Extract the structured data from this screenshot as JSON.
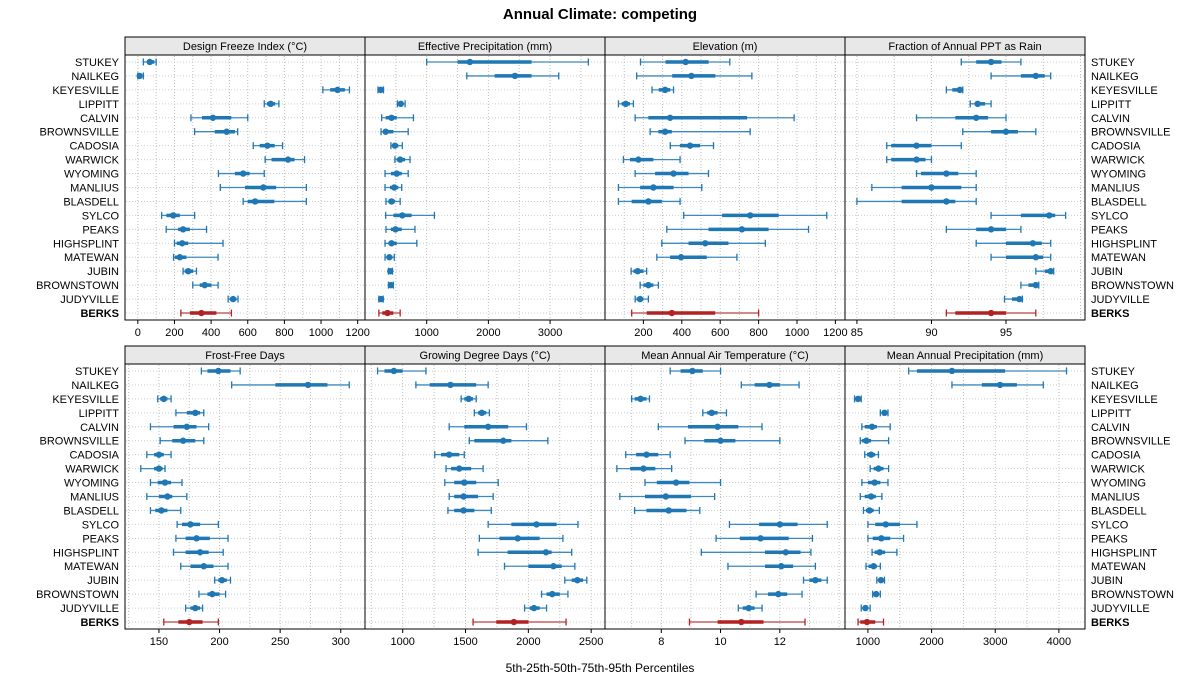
{
  "title": "Annual Climate: competing",
  "caption": "5th-25th-50th-75th-95th Percentiles",
  "percentile_labels": [
    "5th",
    "25th",
    "50th",
    "75th",
    "95th"
  ],
  "stations": [
    "STUKEY",
    "NAILKEG",
    "KEYESVILLE",
    "LIPPITT",
    "CALVIN",
    "BROWNSVILLE",
    "CADOSIA",
    "WARWICK",
    "WYOMING",
    "MANLIUS",
    "BLASDELL",
    "SYLCO",
    "PEAKS",
    "HIGHSPLINT",
    "MATEWAN",
    "JUBIN",
    "BROWNSTOWN",
    "JUDYVILLE",
    "BERKS"
  ],
  "highlight_station": "BERKS",
  "colors": {
    "series": "#1f77b4",
    "highlight": "#b22222",
    "header_bg": "#e8e8e8",
    "grid": "#bdbdbd",
    "row_guide": "#cccccc",
    "panel_border": "#000000"
  },
  "chart_data": [
    {
      "type": "dot-interval",
      "title": "Design Freeze Index (°C)",
      "xlim": [
        -70,
        1240
      ],
      "ticks": [
        0,
        200,
        400,
        600,
        800,
        1000,
        1200
      ],
      "grid_step": 100,
      "values": [
        [
          30,
          50,
          65,
          90,
          100
        ],
        [
          0,
          5,
          10,
          20,
          30
        ],
        [
          1010,
          1050,
          1090,
          1130,
          1155
        ],
        [
          690,
          705,
          725,
          750,
          770
        ],
        [
          290,
          350,
          410,
          510,
          600
        ],
        [
          310,
          420,
          485,
          530,
          545
        ],
        [
          630,
          665,
          707,
          747,
          790
        ],
        [
          695,
          730,
          820,
          855,
          910
        ],
        [
          440,
          530,
          575,
          610,
          690
        ],
        [
          450,
          585,
          685,
          755,
          920
        ],
        [
          575,
          600,
          640,
          745,
          920
        ],
        [
          130,
          156,
          193,
          229,
          310
        ],
        [
          155,
          220,
          247,
          284,
          375
        ],
        [
          200,
          212,
          242,
          275,
          465
        ],
        [
          195,
          202,
          229,
          265,
          438
        ],
        [
          247,
          256,
          275,
          302,
          320
        ],
        [
          300,
          338,
          365,
          402,
          438
        ],
        [
          493,
          502,
          520,
          538,
          547
        ],
        [
          235,
          284,
          347,
          429,
          511
        ]
      ]
    },
    {
      "type": "dot-interval",
      "title": "Effective Precipitation (mm)",
      "xlim": [
        0,
        3890
      ],
      "ticks": [
        1000,
        2000,
        3000
      ],
      "grid_step": 500,
      "values": [
        [
          1000,
          1500,
          1700,
          2700,
          3620
        ],
        [
          1650,
          2100,
          2430,
          2700,
          3140
        ],
        [
          210,
          230,
          255,
          275,
          300
        ],
        [
          525,
          555,
          580,
          620,
          650
        ],
        [
          270,
          335,
          430,
          515,
          785
        ],
        [
          260,
          300,
          335,
          460,
          700
        ],
        [
          420,
          445,
          485,
          540,
          605
        ],
        [
          485,
          515,
          570,
          650,
          730
        ],
        [
          325,
          420,
          515,
          595,
          700
        ],
        [
          325,
          405,
          475,
          540,
          595
        ],
        [
          340,
          380,
          430,
          485,
          570
        ],
        [
          335,
          460,
          605,
          755,
          1125
        ],
        [
          340,
          420,
          495,
          595,
          810
        ],
        [
          325,
          380,
          430,
          515,
          840
        ],
        [
          325,
          350,
          395,
          445,
          475
        ],
        [
          380,
          395,
          410,
          425,
          445
        ],
        [
          380,
          400,
          420,
          440,
          460
        ],
        [
          225,
          245,
          260,
          280,
          295
        ],
        [
          225,
          280,
          365,
          460,
          570
        ]
      ]
    },
    {
      "type": "dot-interval",
      "title": "Elevation (m)",
      "xlim": [
        0,
        1250
      ],
      "ticks": [
        200,
        400,
        600,
        800,
        1000,
        1200
      ],
      "grid_step": 100,
      "values": [
        [
          185,
          315,
          420,
          540,
          650
        ],
        [
          165,
          350,
          450,
          575,
          765
        ],
        [
          245,
          280,
          313,
          340,
          357
        ],
        [
          70,
          87,
          108,
          130,
          148
        ],
        [
          157,
          226,
          339,
          740,
          985
        ],
        [
          235,
          278,
          313,
          348,
          756
        ],
        [
          340,
          390,
          443,
          495,
          565
        ],
        [
          96,
          130,
          174,
          252,
          391
        ],
        [
          157,
          261,
          357,
          435,
          539
        ],
        [
          70,
          183,
          252,
          357,
          504
        ],
        [
          70,
          139,
          226,
          296,
          391
        ],
        [
          410,
          610,
          756,
          905,
          1155
        ],
        [
          322,
          539,
          713,
          852,
          1060
        ],
        [
          296,
          435,
          522,
          643,
          835
        ],
        [
          270,
          339,
          396,
          530,
          687
        ],
        [
          136,
          148,
          170,
          200,
          217
        ],
        [
          183,
          200,
          226,
          252,
          278
        ],
        [
          157,
          165,
          183,
          200,
          226
        ],
        [
          139,
          217,
          348,
          574,
          800
        ]
      ]
    },
    {
      "type": "dot-interval",
      "title": "Fraction of Annual PPT as Rain",
      "xlim": [
        84.2,
        100.3
      ],
      "ticks": [
        85,
        90,
        95
      ],
      "grid_step": 2.5,
      "values": [
        [
          92,
          93,
          94,
          94.7,
          96
        ],
        [
          94,
          96,
          97,
          97.6,
          98
        ],
        [
          91,
          91.4,
          91.9,
          92,
          92.1
        ],
        [
          92.6,
          92.9,
          93.1,
          93.6,
          94
        ],
        [
          89,
          91.6,
          93,
          93.8,
          95
        ],
        [
          92.1,
          94,
          95,
          95.8,
          97
        ],
        [
          87,
          87.3,
          89,
          90,
          92
        ],
        [
          87,
          87.3,
          89,
          89.6,
          90
        ],
        [
          89,
          89.3,
          91,
          91.8,
          93
        ],
        [
          86,
          88,
          90,
          92,
          93
        ],
        [
          85,
          88,
          91,
          91.6,
          93
        ],
        [
          94,
          96,
          97.9,
          98.3,
          99
        ],
        [
          91,
          93,
          94,
          95,
          96
        ],
        [
          93,
          95,
          96.8,
          97.4,
          98
        ],
        [
          94,
          95,
          97,
          97.5,
          98
        ],
        [
          97,
          97.6,
          98,
          98.1,
          98.2
        ],
        [
          96,
          96.5,
          97,
          97.1,
          97.2
        ],
        [
          94.9,
          95.4,
          95.9,
          96,
          96.1
        ],
        [
          91,
          91.6,
          94,
          95,
          97
        ]
      ]
    },
    {
      "type": "dot-interval",
      "title": "Frost-Free Days",
      "xlim": [
        122,
        320
      ],
      "ticks": [
        150,
        200,
        250,
        300
      ],
      "grid_step": 25,
      "values": [
        [
          185,
          190,
          199,
          209,
          217
        ],
        [
          210,
          246,
          273,
          289,
          307
        ],
        [
          149,
          151,
          154,
          157,
          160
        ],
        [
          164,
          173,
          180,
          184,
          187
        ],
        [
          143,
          162,
          173,
          181,
          191
        ],
        [
          151,
          161,
          170,
          180,
          187
        ],
        [
          140,
          146,
          150,
          154,
          160
        ],
        [
          135,
          146,
          150,
          153,
          155
        ],
        [
          143,
          149,
          155,
          160,
          169
        ],
        [
          140,
          150,
          157,
          161,
          173
        ],
        [
          143,
          147,
          152,
          157,
          168
        ],
        [
          165,
          169,
          176,
          184,
          199
        ],
        [
          164,
          172,
          181,
          192,
          207
        ],
        [
          162,
          172,
          184,
          191,
          203
        ],
        [
          168,
          176,
          187,
          195,
          207
        ],
        [
          196,
          199,
          202,
          206,
          209
        ],
        [
          183,
          190,
          194,
          200,
          205
        ],
        [
          172,
          176,
          180,
          184,
          186
        ],
        [
          154,
          166,
          175,
          186,
          199
        ]
      ]
    },
    {
      "type": "dot-interval",
      "title": "Growing Degree Days (°C)",
      "xlim": [
        700,
        2610
      ],
      "ticks": [
        1000,
        1500,
        2000,
        2500
      ],
      "grid_step": 250,
      "values": [
        [
          800,
          855,
          930,
          1000,
          1185
        ],
        [
          1105,
          1215,
          1380,
          1585,
          1680
        ],
        [
          1465,
          1490,
          1525,
          1560,
          1585
        ],
        [
          1570,
          1600,
          1630,
          1665,
          1690
        ],
        [
          1370,
          1490,
          1680,
          1840,
          1985
        ],
        [
          1530,
          1570,
          1800,
          1865,
          2155
        ],
        [
          1255,
          1305,
          1370,
          1450,
          1490
        ],
        [
          1345,
          1385,
          1450,
          1545,
          1640
        ],
        [
          1335,
          1410,
          1490,
          1585,
          1760
        ],
        [
          1370,
          1410,
          1485,
          1600,
          1720
        ],
        [
          1360,
          1410,
          1485,
          1570,
          1705
        ],
        [
          1680,
          1865,
          2065,
          2225,
          2395
        ],
        [
          1610,
          1770,
          1915,
          2090,
          2275
        ],
        [
          1600,
          1835,
          2140,
          2185,
          2345
        ],
        [
          1810,
          2000,
          2200,
          2265,
          2370
        ],
        [
          2290,
          2345,
          2390,
          2435,
          2465
        ],
        [
          2105,
          2145,
          2190,
          2250,
          2315
        ],
        [
          1970,
          2010,
          2045,
          2090,
          2145
        ],
        [
          1560,
          1745,
          1885,
          2000,
          2300
        ]
      ]
    },
    {
      "type": "dot-interval",
      "title": "Mean Annual Air Temperature (°C)",
      "xlim": [
        6.1,
        14.2
      ],
      "ticks": [
        8,
        10,
        12
      ],
      "grid_step": 1,
      "values": [
        [
          8.3,
          8.65,
          9.05,
          9.4,
          10
        ],
        [
          10.7,
          11.15,
          11.65,
          12,
          12.65
        ],
        [
          7,
          7.1,
          7.3,
          7.5,
          7.6
        ],
        [
          9.4,
          9.55,
          9.7,
          9.9,
          10.2
        ],
        [
          7.9,
          8.9,
          9.9,
          10.6,
          11.4
        ],
        [
          8.8,
          9.45,
          10,
          10.5,
          12
        ],
        [
          6.8,
          7.15,
          7.5,
          7.9,
          8.3
        ],
        [
          6.5,
          6.95,
          7.4,
          7.8,
          8.35
        ],
        [
          7.45,
          7.85,
          8.5,
          8.95,
          10
        ],
        [
          6.6,
          7.45,
          8.15,
          9,
          9.8
        ],
        [
          7.1,
          7.5,
          8.25,
          8.85,
          9.3
        ],
        [
          10.3,
          11.3,
          12,
          12.6,
          13.6
        ],
        [
          9.85,
          10.65,
          11.35,
          12.3,
          13.1
        ],
        [
          9.35,
          11.5,
          12.2,
          12.7,
          13.05
        ],
        [
          10.25,
          11.5,
          12.05,
          12.45,
          13.2
        ],
        [
          12.8,
          13,
          13.2,
          13.4,
          13.6
        ],
        [
          11.2,
          11.6,
          11.95,
          12.25,
          12.75
        ],
        [
          10.6,
          10.75,
          10.95,
          11.15,
          11.4
        ],
        [
          8.95,
          9.9,
          10.7,
          11.45,
          12.85
        ]
      ]
    },
    {
      "type": "dot-interval",
      "title": "Mean Annual Precipitation (mm)",
      "xlim": [
        640,
        4410
      ],
      "ticks": [
        1000,
        2000,
        3000,
        4000
      ],
      "grid_step": 500,
      "values": [
        [
          1640,
          1770,
          2320,
          3155,
          4120
        ],
        [
          2320,
          2790,
          3075,
          3340,
          3755
        ],
        [
          790,
          820,
          845,
          870,
          895
        ],
        [
          1195,
          1230,
          1260,
          1290,
          1315
        ],
        [
          905,
          950,
          1065,
          1140,
          1350
        ],
        [
          880,
          905,
          975,
          1050,
          1325
        ],
        [
          950,
          985,
          1050,
          1115,
          1165
        ],
        [
          1035,
          1090,
          1165,
          1245,
          1325
        ],
        [
          905,
          1000,
          1105,
          1195,
          1315
        ],
        [
          880,
          950,
          1050,
          1125,
          1220
        ],
        [
          930,
          970,
          1025,
          1090,
          1180
        ],
        [
          1000,
          1115,
          1280,
          1505,
          1770
        ],
        [
          1000,
          1075,
          1210,
          1350,
          1560
        ],
        [
          1065,
          1105,
          1185,
          1270,
          1455
        ],
        [
          970,
          1010,
          1090,
          1140,
          1195
        ],
        [
          1140,
          1175,
          1205,
          1235,
          1260
        ],
        [
          1075,
          1100,
          1130,
          1165,
          1195
        ],
        [
          895,
          925,
          960,
          1000,
          1035
        ],
        [
          845,
          880,
          985,
          1115,
          1245
        ]
      ]
    }
  ]
}
